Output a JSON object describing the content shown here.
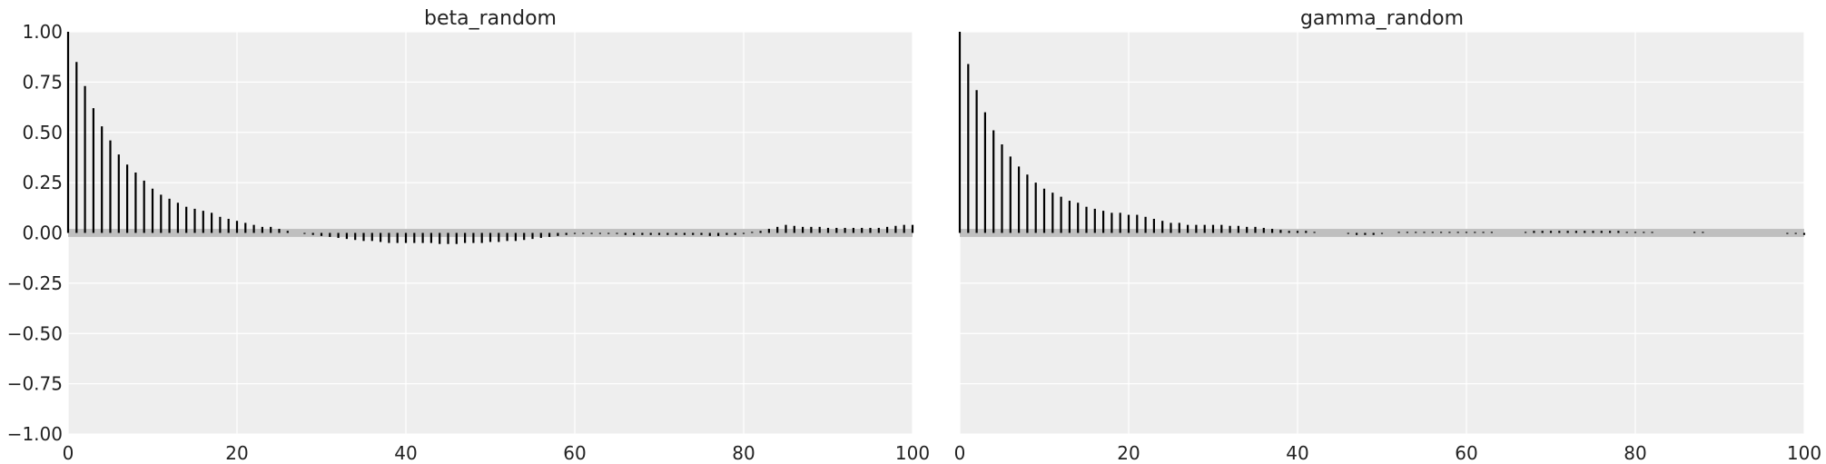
{
  "chart_data": [
    {
      "type": "bar",
      "title": "beta_random",
      "xlabel": "",
      "ylabel": "",
      "xlim": [
        0,
        100
      ],
      "ylim": [
        -1.0,
        1.0
      ],
      "xticks": [
        0,
        20,
        40,
        60,
        80,
        100
      ],
      "yticks": [
        -1.0,
        -0.75,
        -0.5,
        -0.25,
        0.0,
        0.25,
        0.5,
        0.75,
        1.0
      ],
      "ytick_labels": [
        "−1.00",
        "−0.75",
        "−0.50",
        "−0.25",
        "0.00",
        "0.25",
        "0.50",
        "0.75",
        "1.00"
      ],
      "confidence_band": [
        -0.02,
        0.02
      ],
      "grid": true,
      "lags": [
        0,
        1,
        2,
        3,
        4,
        5,
        6,
        7,
        8,
        9,
        10,
        11,
        12,
        13,
        14,
        15,
        16,
        17,
        18,
        19,
        20,
        21,
        22,
        23,
        24,
        25,
        26,
        27,
        28,
        29,
        30,
        31,
        32,
        33,
        34,
        35,
        36,
        37,
        38,
        39,
        40,
        41,
        42,
        43,
        44,
        45,
        46,
        47,
        48,
        49,
        50,
        51,
        52,
        53,
        54,
        55,
        56,
        57,
        58,
        59,
        60,
        61,
        62,
        63,
        64,
        65,
        66,
        67,
        68,
        69,
        70,
        71,
        72,
        73,
        74,
        75,
        76,
        77,
        78,
        79,
        80,
        81,
        82,
        83,
        84,
        85,
        86,
        87,
        88,
        89,
        90,
        91,
        92,
        93,
        94,
        95,
        96,
        97,
        98,
        99,
        100
      ],
      "values": [
        1.0,
        0.85,
        0.73,
        0.62,
        0.53,
        0.46,
        0.39,
        0.34,
        0.3,
        0.26,
        0.22,
        0.19,
        0.17,
        0.15,
        0.13,
        0.12,
        0.11,
        0.1,
        0.08,
        0.07,
        0.06,
        0.05,
        0.04,
        0.03,
        0.03,
        0.02,
        0.01,
        0.0,
        -0.005,
        -0.01,
        -0.015,
        -0.02,
        -0.025,
        -0.03,
        -0.035,
        -0.04,
        -0.04,
        -0.045,
        -0.05,
        -0.05,
        -0.05,
        -0.05,
        -0.05,
        -0.05,
        -0.055,
        -0.055,
        -0.055,
        -0.05,
        -0.05,
        -0.05,
        -0.045,
        -0.045,
        -0.04,
        -0.04,
        -0.035,
        -0.03,
        -0.025,
        -0.02,
        -0.015,
        -0.01,
        -0.005,
        -0.005,
        -0.005,
        -0.005,
        -0.005,
        -0.005,
        -0.01,
        -0.01,
        -0.01,
        -0.01,
        -0.01,
        -0.01,
        -0.01,
        -0.01,
        -0.01,
        -0.01,
        -0.015,
        -0.015,
        -0.01,
        -0.01,
        -0.005,
        0.005,
        0.01,
        0.02,
        0.03,
        0.04,
        0.035,
        0.03,
        0.03,
        0.03,
        0.025,
        0.025,
        0.025,
        0.025,
        0.025,
        0.025,
        0.025,
        0.03,
        0.035,
        0.04,
        0.04
      ]
    },
    {
      "type": "bar",
      "title": "gamma_random",
      "xlabel": "",
      "ylabel": "",
      "xlim": [
        0,
        100
      ],
      "ylim": [
        -1.0,
        1.0
      ],
      "xticks": [
        0,
        20,
        40,
        60,
        80,
        100
      ],
      "confidence_band": [
        -0.02,
        0.02
      ],
      "grid": true,
      "lags": [
        0,
        1,
        2,
        3,
        4,
        5,
        6,
        7,
        8,
        9,
        10,
        11,
        12,
        13,
        14,
        15,
        16,
        17,
        18,
        19,
        20,
        21,
        22,
        23,
        24,
        25,
        26,
        27,
        28,
        29,
        30,
        31,
        32,
        33,
        34,
        35,
        36,
        37,
        38,
        39,
        40,
        41,
        42,
        43,
        44,
        45,
        46,
        47,
        48,
        49,
        50,
        51,
        52,
        53,
        54,
        55,
        56,
        57,
        58,
        59,
        60,
        61,
        62,
        63,
        64,
        65,
        66,
        67,
        68,
        69,
        70,
        71,
        72,
        73,
        74,
        75,
        76,
        77,
        78,
        79,
        80,
        81,
        82,
        83,
        84,
        85,
        86,
        87,
        88,
        89,
        90,
        91,
        92,
        93,
        94,
        95,
        96,
        97,
        98,
        99,
        100
      ],
      "values": [
        1.0,
        0.84,
        0.71,
        0.6,
        0.51,
        0.44,
        0.38,
        0.33,
        0.29,
        0.25,
        0.22,
        0.2,
        0.18,
        0.16,
        0.15,
        0.13,
        0.12,
        0.11,
        0.1,
        0.1,
        0.09,
        0.09,
        0.08,
        0.07,
        0.06,
        0.05,
        0.05,
        0.04,
        0.04,
        0.04,
        0.04,
        0.04,
        0.035,
        0.035,
        0.03,
        0.03,
        0.025,
        0.02,
        0.015,
        0.01,
        0.01,
        0.01,
        0.005,
        0.0,
        0.0,
        0.0,
        -0.005,
        -0.01,
        -0.01,
        -0.01,
        -0.005,
        0.0,
        0.005,
        0.005,
        0.005,
        0.005,
        0.005,
        0.005,
        0.005,
        0.005,
        0.005,
        0.005,
        0.005,
        0.005,
        0.0,
        0.0,
        0.0,
        0.005,
        0.01,
        0.01,
        0.01,
        0.01,
        0.01,
        0.01,
        0.01,
        0.01,
        0.01,
        0.01,
        0.01,
        0.005,
        0.005,
        0.005,
        0.005,
        0.0,
        0.0,
        0.0,
        0.0,
        0.005,
        0.005,
        0.0,
        0.0,
        0.0,
        0.0,
        0.0,
        0.0,
        0.0,
        0.0,
        0.0,
        -0.005,
        -0.005,
        -0.01
      ]
    }
  ]
}
